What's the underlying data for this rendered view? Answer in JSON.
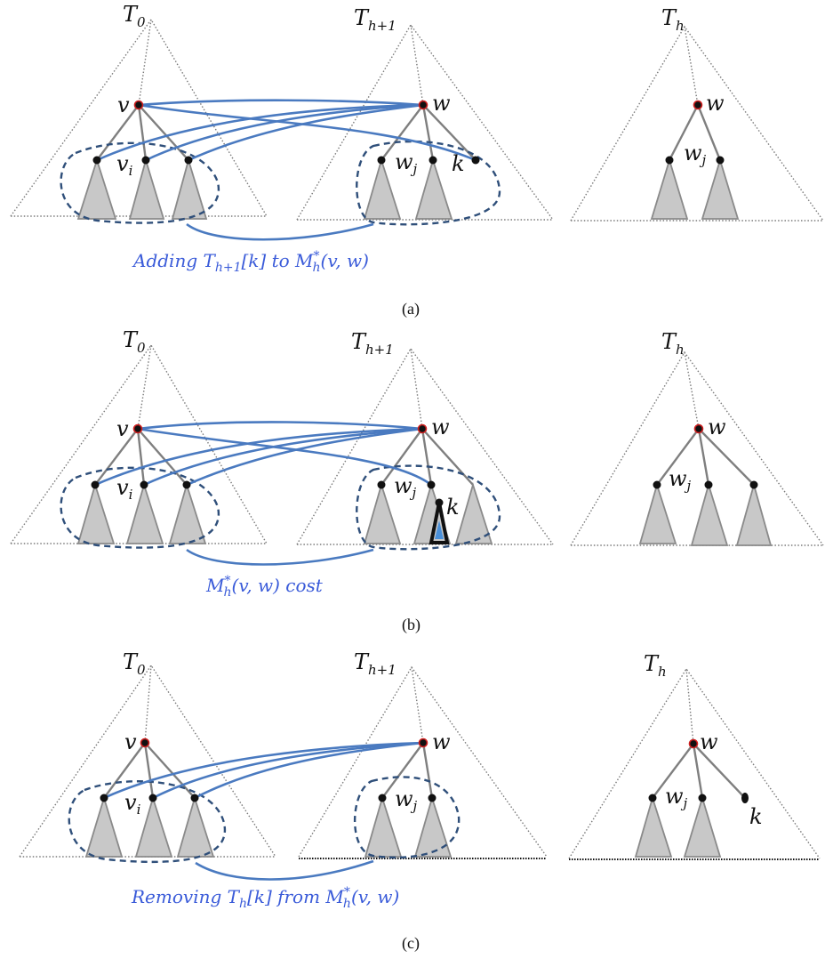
{
  "panels": [
    {
      "id": "a",
      "tree_labels": [
        "T",
        "0",
        "T",
        "h+1",
        "T",
        "h"
      ],
      "node_labels": {
        "v": "v",
        "vi": "v",
        "vi_sub": "i",
        "w": "w",
        "wj": "w",
        "wj_sub": "j",
        "k": "k",
        "w_h": "w",
        "wj_h": "w",
        "wj_h_sub": "j"
      },
      "caption": "Adding T_{h+1}[k] to M*_h(v, w)",
      "caption_text": "Adding T",
      "caption_sub": "h+1",
      "caption_rest": "[k] to M",
      "caption_sup": "*",
      "caption_sub2": "h",
      "caption_end": "(v, w)",
      "panel_label": "(a)"
    },
    {
      "id": "b",
      "node_labels": {
        "v": "v",
        "vi": "v",
        "vi_sub": "i",
        "w": "w",
        "wj": "w",
        "wj_sub": "j",
        "k": "k",
        "w_h": "w",
        "wj_h": "w",
        "wj_h_sub": "j"
      },
      "caption_text": "M",
      "caption_sup": "*",
      "caption_sub": "h",
      "caption_end": "(v, w) cost",
      "panel_label": "(b)"
    },
    {
      "id": "c",
      "node_labels": {
        "v": "v",
        "vi": "v",
        "vi_sub": "i",
        "w": "w",
        "wj": "w",
        "wj_sub": "j",
        "w_h": "w",
        "wj_h": "w",
        "wj_h_sub": "j",
        "k": "k"
      },
      "caption_text": "Removing T",
      "caption_sub": "h",
      "caption_rest": "[k] from M",
      "caption_sup": "*",
      "caption_sub2": "h",
      "caption_end": "(v, w)",
      "panel_label": "(c)"
    }
  ],
  "colors": {
    "match_edge": "#4a7ac0",
    "caption": "#3a5bd9",
    "ellipse": "#2f4f7a",
    "root_highlight": "#d02020",
    "subtree_fill": "#c8c8c8"
  }
}
